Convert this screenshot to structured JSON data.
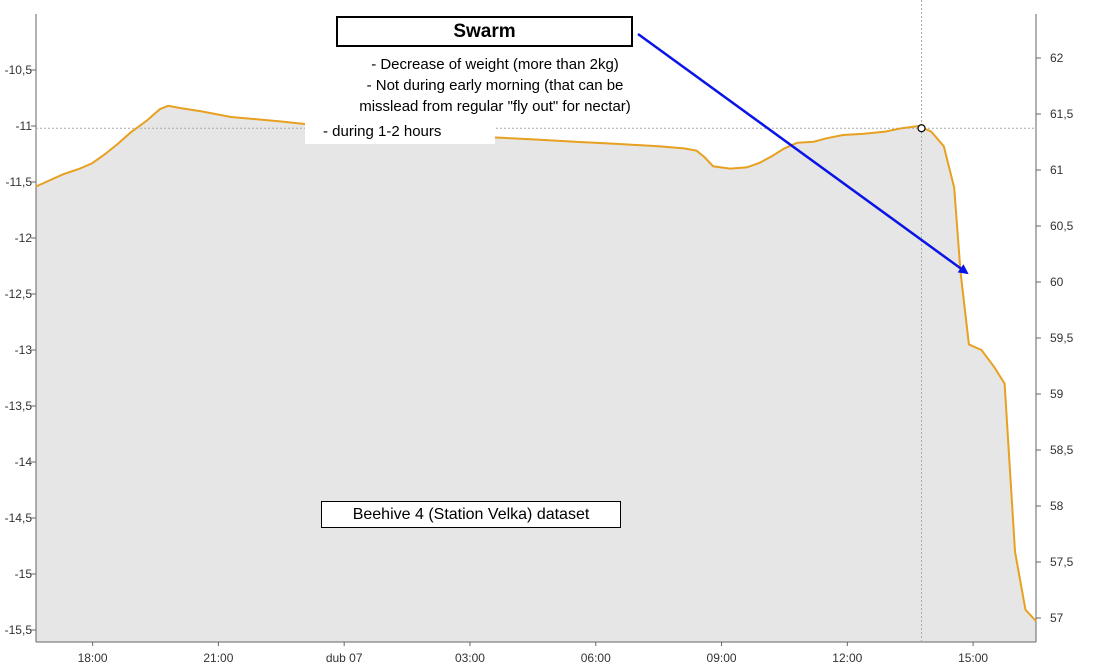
{
  "annotations": {
    "swarm_title": "Swarm",
    "note_lines": [
      "- Decrease of weight (more than 2kg)",
      "- Not during early morning (that can be",
      "misslead from regular \"fly out\" for nectar)"
    ],
    "note_duration": "- during 1-2 hours",
    "dataset_label": "Beehive 4 (Station Velka) dataset"
  },
  "colors": {
    "line": "#e8a020",
    "area": "#e6e6e6",
    "arrow": "#0a14e6",
    "grid": "#aaaaaa"
  },
  "chart_data": {
    "type": "area",
    "x_tick_labels": [
      {
        "hour": 18,
        "label": "18:00"
      },
      {
        "hour": 21,
        "label": "21:00"
      },
      {
        "hour": 24,
        "label": "dub 07"
      },
      {
        "hour": 27,
        "label": "03:00"
      },
      {
        "hour": 30,
        "label": "06:00"
      },
      {
        "hour": 33,
        "label": "09:00"
      },
      {
        "hour": 36,
        "label": "12:00"
      },
      {
        "hour": 39,
        "label": "15:00"
      }
    ],
    "xlim": [
      16.65,
      40.5
    ],
    "ylim_left": [
      -15.5,
      -10.5
    ],
    "left_ticks": [
      "-10,5",
      "-11",
      "-11,5",
      "-12",
      "-12,5",
      "-13",
      "-13,5",
      "-14",
      "-14,5",
      "-15",
      "-15,5"
    ],
    "ylim_right": [
      57,
      62
    ],
    "right_ticks": [
      "62",
      "61,5",
      "61",
      "60,5",
      "60",
      "59,5",
      "59",
      "58,5",
      "58",
      "57,5",
      "57"
    ],
    "series": [
      {
        "values": [
          [
            16.65,
            -11.54
          ],
          [
            17.3,
            -11.43
          ],
          [
            17.7,
            -11.38
          ],
          [
            18.0,
            -11.33
          ],
          [
            18.3,
            -11.25
          ],
          [
            18.6,
            -11.16
          ],
          [
            18.9,
            -11.06
          ],
          [
            19.3,
            -10.95
          ],
          [
            19.6,
            -10.85
          ],
          [
            19.8,
            -10.82
          ],
          [
            20.1,
            -10.84
          ],
          [
            20.6,
            -10.87
          ],
          [
            21.3,
            -10.92
          ],
          [
            22.5,
            -10.96
          ],
          [
            23.5,
            -11.0
          ],
          [
            24.5,
            -11.04
          ],
          [
            25.5,
            -11.06
          ],
          [
            26.5,
            -11.08
          ],
          [
            27.5,
            -11.1
          ],
          [
            28.5,
            -11.12
          ],
          [
            29.5,
            -11.14
          ],
          [
            30.5,
            -11.16
          ],
          [
            31.5,
            -11.18
          ],
          [
            32.1,
            -11.2
          ],
          [
            32.4,
            -11.22
          ],
          [
            32.6,
            -11.28
          ],
          [
            32.8,
            -11.36
          ],
          [
            33.2,
            -11.38
          ],
          [
            33.6,
            -11.37
          ],
          [
            33.9,
            -11.33
          ],
          [
            34.2,
            -11.27
          ],
          [
            34.5,
            -11.2
          ],
          [
            34.8,
            -11.15
          ],
          [
            35.2,
            -11.14
          ],
          [
            35.5,
            -11.11
          ],
          [
            35.9,
            -11.08
          ],
          [
            36.4,
            -11.07
          ],
          [
            36.9,
            -11.05
          ],
          [
            37.3,
            -11.02
          ],
          [
            37.7,
            -11.0
          ],
          [
            38.0,
            -11.05
          ],
          [
            38.3,
            -11.18
          ],
          [
            38.55,
            -11.55
          ],
          [
            38.7,
            -12.3
          ],
          [
            38.9,
            -12.95
          ],
          [
            39.2,
            -13.0
          ],
          [
            39.5,
            -13.15
          ],
          [
            39.75,
            -13.3
          ],
          [
            40.0,
            -14.8
          ],
          [
            40.25,
            -15.32
          ],
          [
            40.5,
            -15.42
          ]
        ]
      }
    ],
    "crosshair": {
      "hour": 37.77,
      "value": -11.02
    },
    "grid": false
  }
}
